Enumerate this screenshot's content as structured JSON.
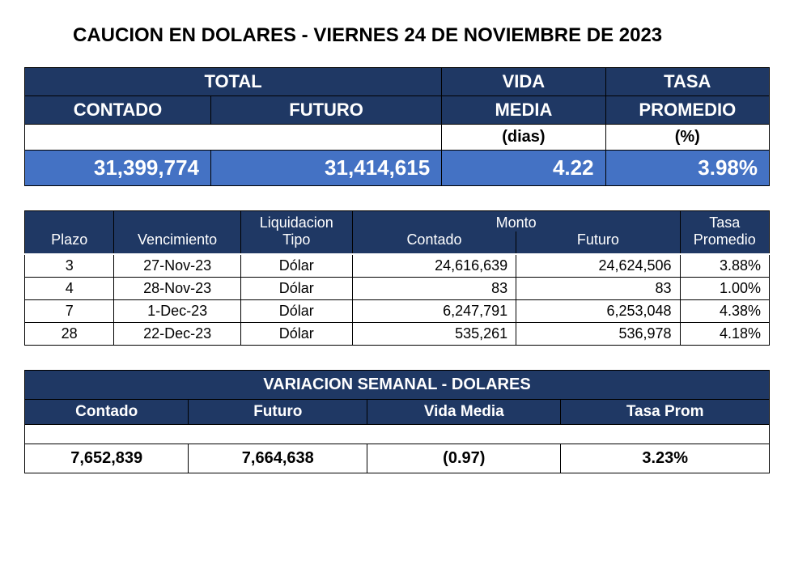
{
  "title": "CAUCION EN DOLARES - VIERNES 24 DE NOVIEMBRE DE 2023",
  "colors": {
    "header_bg": "#1f3864",
    "header_fg": "#ffffff",
    "value_row_bg": "#4472c4",
    "value_row_fg": "#ffffff",
    "border": "#000000",
    "page_bg": "#ffffff"
  },
  "summary": {
    "headers": {
      "total": "TOTAL",
      "contado": "CONTADO",
      "futuro": "FUTURO",
      "vida_media": "VIDA",
      "vida_media2": "MEDIA",
      "tasa_prom": "TASA",
      "tasa_prom2": "PROMEDIO",
      "dias_unit": "(dias)",
      "pct_unit": "(%)"
    },
    "values": {
      "contado": "31,399,774",
      "futuro": "31,414,615",
      "vida_media": "4.22",
      "tasa_prom": "3.98%"
    }
  },
  "detail": {
    "headers": {
      "plazo": "Plazo",
      "vencimiento": "Vencimiento",
      "liquidacion": "Liquidacion",
      "tipo": "Tipo",
      "monto": "Monto",
      "contado": "Contado",
      "futuro": "Futuro",
      "tasa": "Tasa",
      "promedio": "Promedio"
    },
    "rows": [
      {
        "plazo": "3",
        "venc": "27-Nov-23",
        "tipo": "Dólar",
        "contado": "24,616,639",
        "futuro": "24,624,506",
        "tasa": "3.88%"
      },
      {
        "plazo": "4",
        "venc": "28-Nov-23",
        "tipo": "Dólar",
        "contado": "83",
        "futuro": "83",
        "tasa": "1.00%"
      },
      {
        "plazo": "7",
        "venc": "1-Dec-23",
        "tipo": "Dólar",
        "contado": "6,247,791",
        "futuro": "6,253,048",
        "tasa": "4.38%"
      },
      {
        "plazo": "28",
        "venc": "22-Dec-23",
        "tipo": "Dólar",
        "contado": "535,261",
        "futuro": "536,978",
        "tasa": "4.18%"
      }
    ]
  },
  "variation": {
    "title": "VARIACION SEMANAL - DOLARES",
    "headers": {
      "contado": "Contado",
      "futuro": "Futuro",
      "vida_media": "Vida Media",
      "tasa_prom": "Tasa Prom"
    },
    "values": {
      "contado": "7,652,839",
      "futuro": "7,664,638",
      "vida_media": "(0.97)",
      "tasa_prom": "3.23%"
    }
  }
}
